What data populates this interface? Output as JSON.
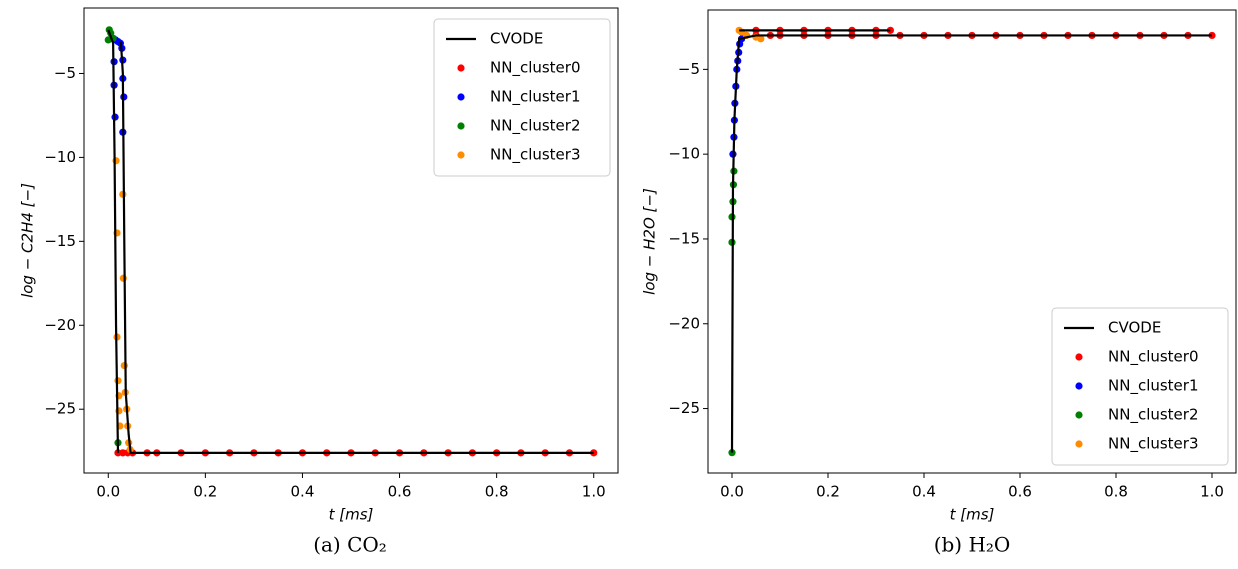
{
  "chart_data": [
    {
      "type": "scatter",
      "caption": "(a) CO₂",
      "xlabel": "t [ms]",
      "ylabel": "log − C2H4 [−]",
      "xlim": [
        -0.05,
        1.05
      ],
      "ylim": [
        -28.8,
        -1.1
      ],
      "xticks": [
        {
          "value": 0,
          "label": "0.0"
        },
        0.2,
        0.4,
        0.6,
        0.8,
        {
          "value": 1,
          "label": "1.0"
        }
      ],
      "yticks": [
        {
          "value": -25,
          "label": "−25"
        },
        {
          "value": -20,
          "label": "−20"
        },
        {
          "value": -15,
          "label": "−15"
        },
        {
          "value": -10,
          "label": "−10"
        },
        {
          "value": -5,
          "label": "−5"
        }
      ],
      "legend": "upper right",
      "series": [
        {
          "name": "CVODE",
          "mode": "line",
          "color": "#000000",
          "x": [
            0,
            0.005,
            0.01,
            0.013,
            0.016,
            0.02,
            0.022,
            0.026,
            0.03,
            0.033,
            0.036,
            0.042,
            0.046,
            1.0
          ],
          "values": [
            -2.4,
            -2.8,
            -3.2,
            -10,
            -20,
            -27.6,
            null,
            -3.1,
            -5,
            -15,
            -24,
            -26.5,
            -27.6,
            -27.6
          ]
        },
        {
          "name": "NN_cluster0",
          "mode": "scatter",
          "color": "#ff0000",
          "x": [
            0.02,
            0.03,
            0.04,
            0.05,
            0.08,
            0.1,
            0.15,
            0.2,
            0.25,
            0.3,
            0.35,
            0.4,
            0.45,
            0.5,
            0.55,
            0.6,
            0.65,
            0.7,
            0.75,
            0.8,
            0.85,
            0.9,
            0.95,
            1.0
          ],
          "values": [
            -27.6,
            -27.6,
            -27.6,
            -27.6,
            -27.6,
            -27.6,
            -27.6,
            -27.6,
            -27.6,
            -27.6,
            -27.6,
            -27.6,
            -27.6,
            -27.6,
            -27.6,
            -27.6,
            -27.6,
            -27.6,
            -27.6,
            -27.6,
            -27.6,
            -27.6,
            -27.6,
            -27.6
          ]
        },
        {
          "name": "NN_cluster1",
          "mode": "scatter",
          "color": "#0000ff",
          "x": [
            0.012,
            0.012,
            0.014,
            0.015,
            0.02,
            0.025,
            0.028,
            0.03,
            0.03,
            0.032,
            0.03
          ],
          "values": [
            -4.3,
            -5.7,
            -7.6,
            -3.0,
            -3.1,
            -3.2,
            -3.5,
            -4.2,
            -5.3,
            -6.4,
            -8.5
          ]
        },
        {
          "name": "NN_cluster2",
          "mode": "scatter",
          "color": "#008000",
          "x": [
            0.002,
            0.0,
            0.005,
            0.01,
            0.02
          ],
          "values": [
            -2.4,
            -3.0,
            -2.6,
            -2.9,
            -27.0
          ]
        },
        {
          "name": "NN_cluster3",
          "mode": "scatter",
          "color": "#ff8c00",
          "x": [
            0.016,
            0.018,
            0.018,
            0.02,
            0.022,
            0.022,
            0.024,
            0.03,
            0.031,
            0.033,
            0.035,
            0.038,
            0.04,
            0.042,
            0.045
          ],
          "values": [
            -10.2,
            -14.5,
            -20.7,
            -23.3,
            -24.2,
            -25.1,
            -26.0,
            -12.2,
            -17.2,
            -22.4,
            -24.0,
            -25.0,
            -26.0,
            -27.0,
            -27.4
          ]
        }
      ]
    },
    {
      "type": "scatter",
      "caption": "(b) H₂O",
      "xlabel": "t [ms]",
      "ylabel": "log − H2O [−]",
      "xlim": [
        -0.05,
        1.05
      ],
      "ylim": [
        -28.8,
        -1.5
      ],
      "xticks": [
        {
          "value": 0,
          "label": "0.0"
        },
        0.2,
        0.4,
        0.6,
        0.8,
        {
          "value": 1,
          "label": "1.0"
        }
      ],
      "yticks": [
        {
          "value": -25,
          "label": "−25"
        },
        {
          "value": -20,
          "label": "−20"
        },
        {
          "value": -15,
          "label": "−15"
        },
        {
          "value": -10,
          "label": "−10"
        },
        {
          "value": -5,
          "label": "−5"
        }
      ],
      "legend": "lower right",
      "series": [
        {
          "name": "CVODE",
          "mode": "line",
          "color": "#000000",
          "x": [
            0,
            0.002,
            0.005,
            0.01,
            0.015,
            0.05,
            1.0,
            1.0,
            0.015,
            0.33
          ],
          "values": [
            -27.6,
            -12,
            -8,
            -5,
            -3.2,
            -3.0,
            -3.0,
            null,
            -2.7,
            -2.7
          ]
        },
        {
          "name": "NN_cluster0",
          "mode": "scatter",
          "color": "#ff0000",
          "x": [
            0.03,
            0.05,
            0.08,
            0.1,
            0.15,
            0.2,
            0.25,
            0.3,
            0.35,
            0.4,
            0.45,
            0.5,
            0.55,
            0.6,
            0.65,
            0.7,
            0.75,
            0.8,
            0.85,
            0.9,
            0.95,
            1.0,
            0.05,
            0.1,
            0.15,
            0.2,
            0.25,
            0.3,
            0.33
          ],
          "values": [
            -3.0,
            -3.0,
            -3.0,
            -3.0,
            -3.0,
            -3.0,
            -3.0,
            -3.0,
            -3.0,
            -3.0,
            -3.0,
            -3.0,
            -3.0,
            -3.0,
            -3.0,
            -3.0,
            -3.0,
            -3.0,
            -3.0,
            -3.0,
            -3.0,
            -3.0,
            -2.7,
            -2.7,
            -2.7,
            -2.7,
            -2.7,
            -2.7,
            -2.7
          ]
        },
        {
          "name": "NN_cluster1",
          "mode": "scatter",
          "color": "#0000ff",
          "x": [
            0.002,
            0.004,
            0.005,
            0.006,
            0.008,
            0.01,
            0.012,
            0.014,
            0.016,
            0.02,
            0.025
          ],
          "values": [
            -10.0,
            -9.0,
            -8.0,
            -7.0,
            -6.0,
            -5.0,
            -4.5,
            -4.0,
            -3.5,
            -3.2,
            -3.0
          ]
        },
        {
          "name": "NN_cluster2",
          "mode": "scatter",
          "color": "#008000",
          "x": [
            0.0,
            0.0,
            0.0,
            0.002,
            0.003,
            0.004
          ],
          "values": [
            -27.6,
            -15.2,
            -13.7,
            -12.8,
            -11.8,
            -11.0
          ]
        },
        {
          "name": "NN_cluster3",
          "mode": "scatter",
          "color": "#ff8c00",
          "x": [
            0.015,
            0.02,
            0.03,
            0.05,
            0.06
          ],
          "values": [
            -2.7,
            -2.8,
            -3.0,
            -3.1,
            -3.2
          ]
        }
      ]
    }
  ]
}
